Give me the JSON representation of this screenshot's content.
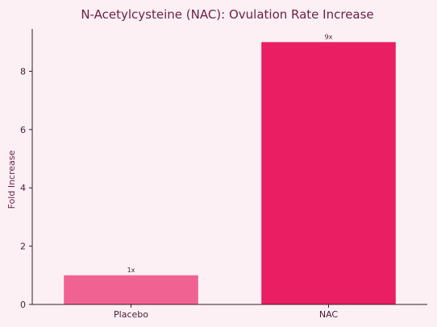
{
  "chart_data": {
    "type": "bar",
    "title": "N-Acetylcysteine (NAC): Ovulation Rate Increase",
    "xlabel": "",
    "ylabel": "Fold Increase",
    "categories": [
      "Placebo",
      "NAC"
    ],
    "values": [
      1,
      9
    ],
    "data_labels": [
      "1x",
      "9x"
    ],
    "bar_colors": [
      "#f06292",
      "#e91e63"
    ],
    "ylim": [
      0,
      9.45
    ],
    "yticks": [
      0,
      2,
      4,
      6,
      8
    ],
    "grid": false,
    "legend": "none"
  }
}
